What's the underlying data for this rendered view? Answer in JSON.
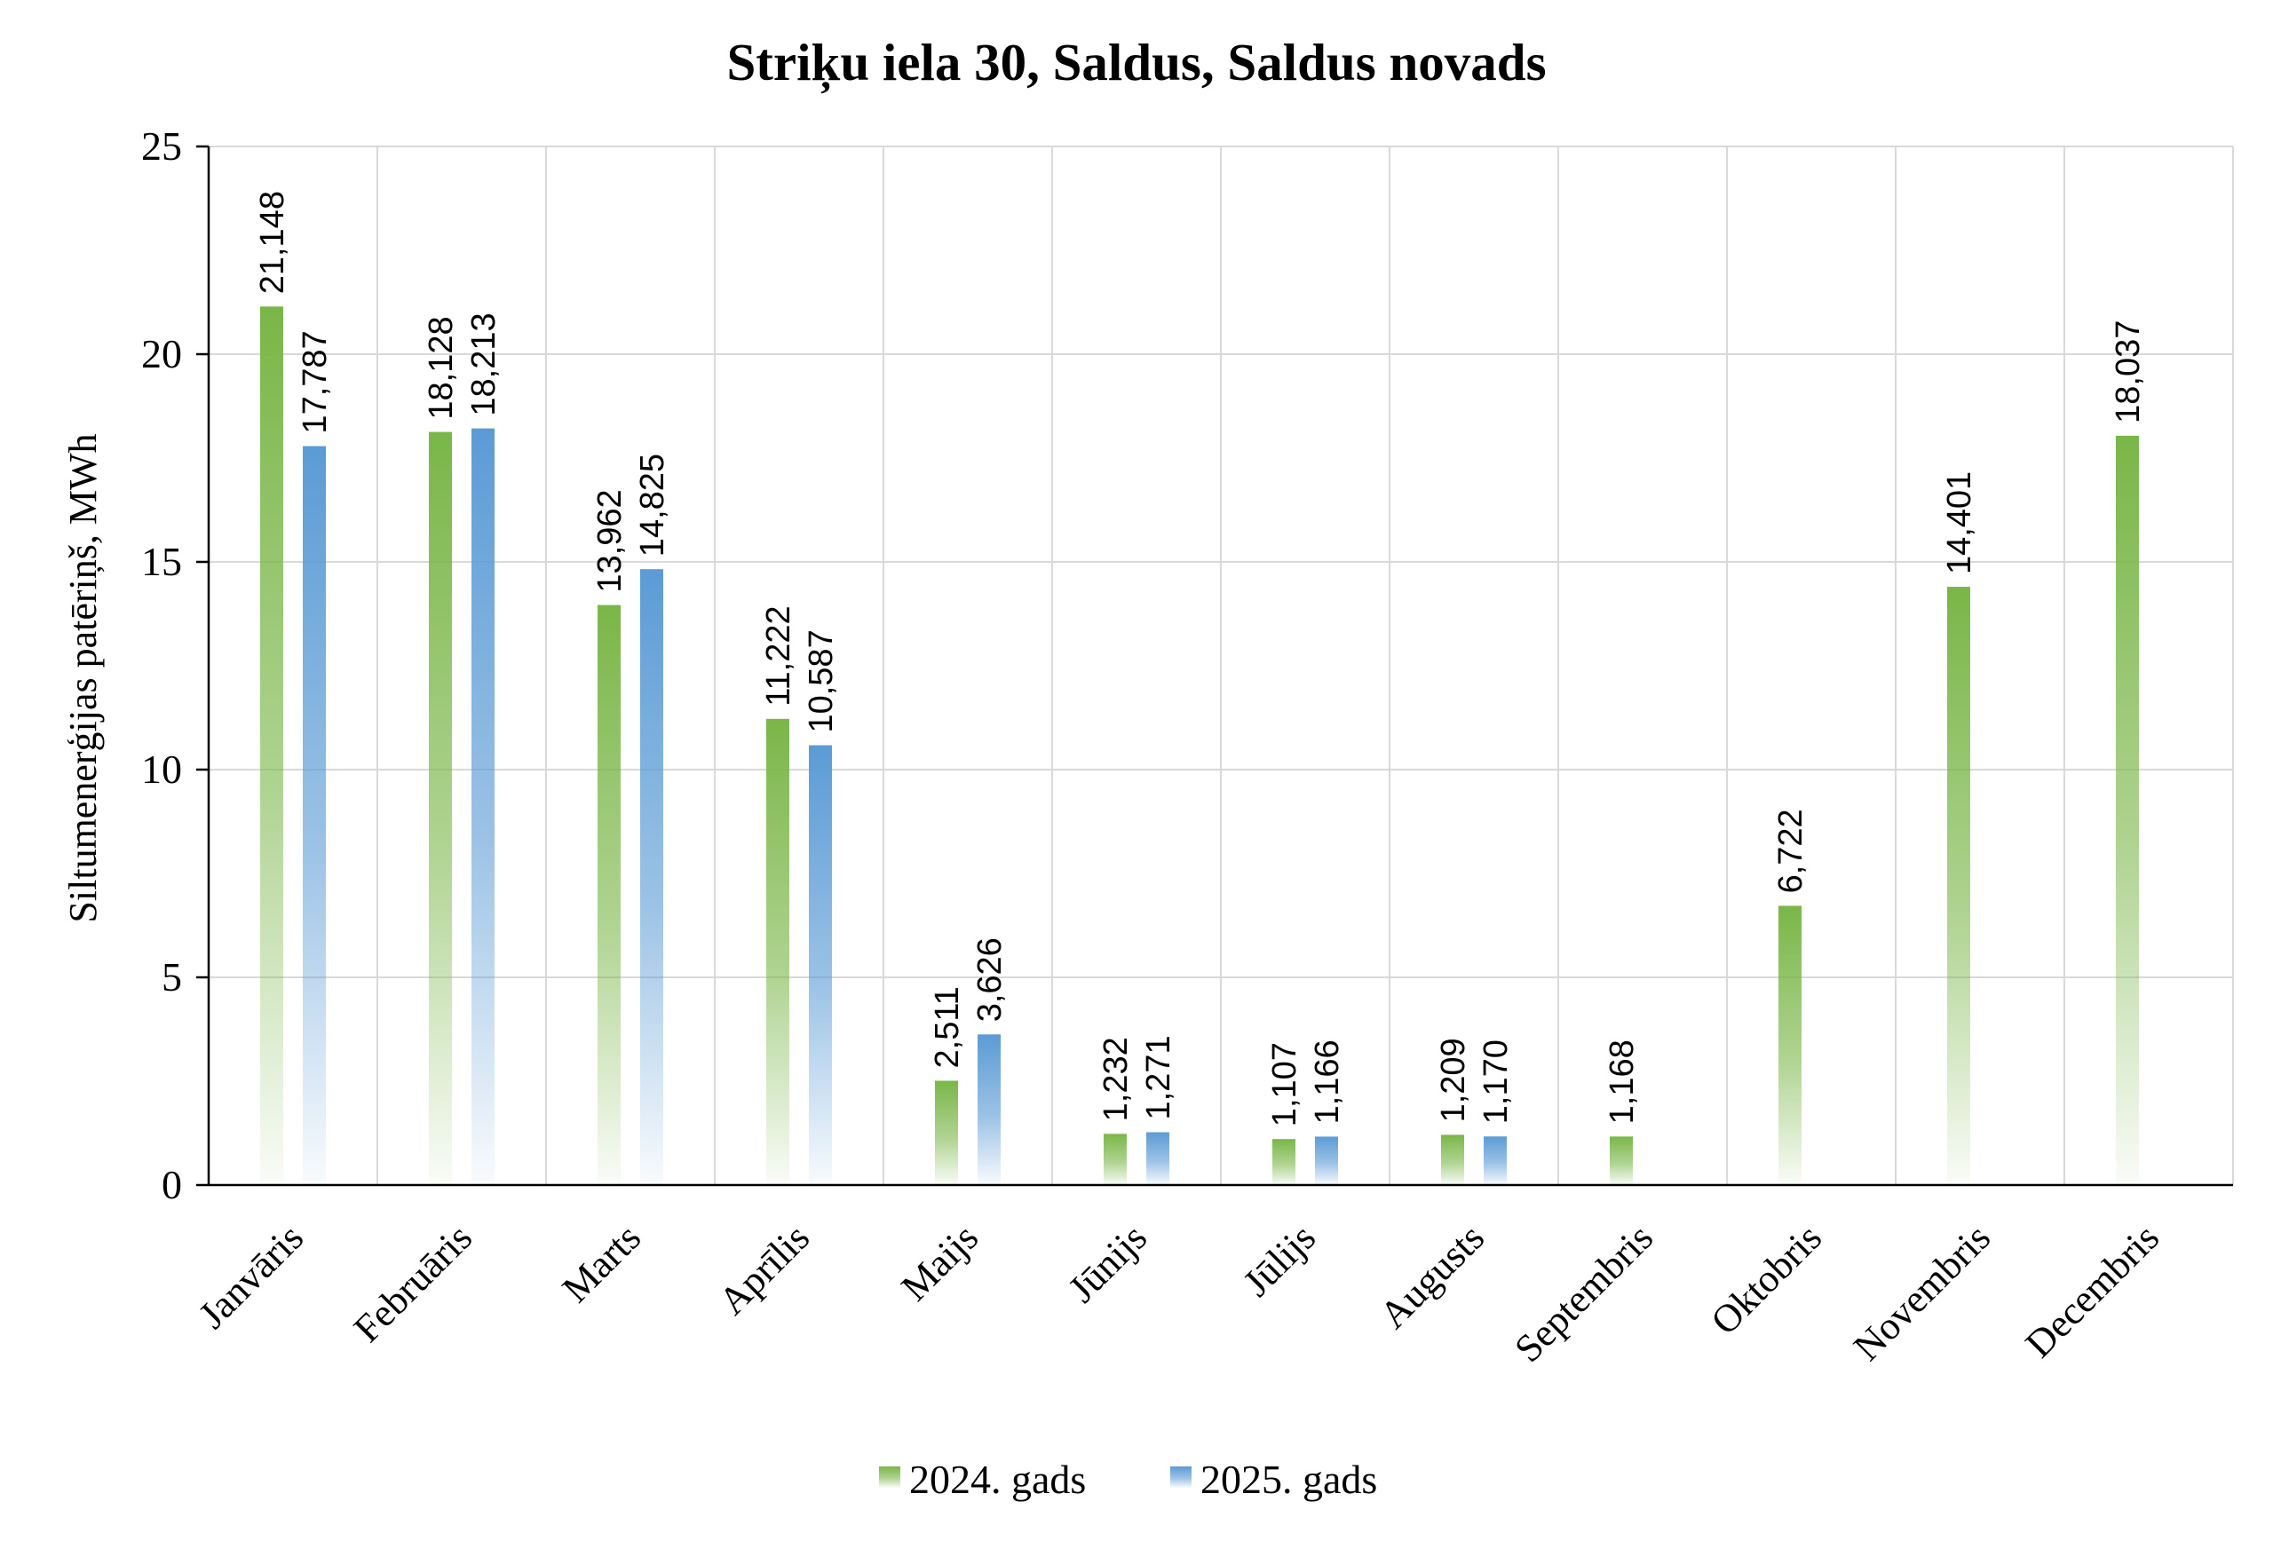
{
  "chart_data": {
    "type": "bar",
    "title": "Striķu iela 30, Saldus, Saldus novads",
    "ylabel": "Siltumenerģijas patēriņš, MWh",
    "xlabel": "",
    "ylim": [
      0,
      25
    ],
    "yticks": [
      "0",
      "5",
      "10",
      "15",
      "20",
      "25"
    ],
    "grid": true,
    "legend_position": "bottom",
    "categories": [
      "Janvāris",
      "Februāris",
      "Marts",
      "Aprīlis",
      "Maijs",
      "Jūnijs",
      "Jūlijs",
      "Augusts",
      "Septembris",
      "Oktobris",
      "Novembris",
      "Decembris"
    ],
    "series": [
      {
        "name": "2024. gads",
        "color": "#7ab648",
        "values": [
          21.148,
          18.128,
          13.962,
          11.222,
          2.511,
          1.232,
          1.107,
          1.209,
          1.168,
          6.722,
          14.401,
          18.037
        ],
        "labels": [
          "21,148",
          "18,128",
          "13,962",
          "11,222",
          "2,511",
          "1,232",
          "1,107",
          "1,209",
          "1,168",
          "6,722",
          "14,401",
          "18,037"
        ]
      },
      {
        "name": "2025. gads",
        "color": "#5b9bd5",
        "values": [
          17.787,
          18.213,
          14.825,
          10.587,
          3.626,
          1.271,
          1.166,
          1.17,
          null,
          null,
          null,
          null
        ],
        "labels": [
          "17,787",
          "18,213",
          "14,825",
          "10,587",
          "3,626",
          "1,271",
          "1,166",
          "1,170",
          null,
          null,
          null,
          null
        ]
      }
    ]
  }
}
